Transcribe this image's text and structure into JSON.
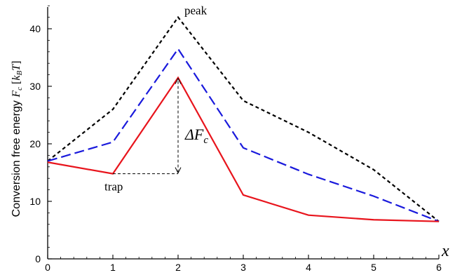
{
  "chart_data": {
    "type": "line",
    "x": [
      0,
      1,
      2,
      3,
      4,
      5,
      6
    ],
    "xlabel": "x",
    "ylabel": {
      "text": "Conversion free energy ",
      "symbol": "F",
      "symbol_sub": "c",
      "unit_open": " [",
      "unit_k": "k",
      "unit_k_sub": "B",
      "unit_T": "T",
      "unit_close": "]"
    },
    "xlim": [
      0,
      6
    ],
    "ylim": [
      0,
      45
    ],
    "xticks": [
      0,
      1,
      2,
      3,
      4,
      5,
      6
    ],
    "xtick_labels": [
      "0",
      "1",
      "2",
      "3",
      "4",
      "5",
      "6"
    ],
    "yticks": [
      0,
      10,
      20,
      30,
      40
    ],
    "ytick_labels": [
      "0",
      "10",
      "20",
      "30",
      "40"
    ],
    "grid": false,
    "series": [
      {
        "color": "#000000",
        "dash": "5,4",
        "values": [
          17.0,
          26.0,
          42.0,
          27.5,
          22.0,
          15.5,
          6.5
        ]
      },
      {
        "color": "#1a1adc",
        "dash": "14,6",
        "values": [
          17.0,
          20.3,
          36.5,
          19.3,
          14.7,
          10.9,
          6.5
        ]
      },
      {
        "color": "#e8141c",
        "dash": "",
        "values": [
          16.8,
          14.8,
          31.5,
          11.1,
          7.6,
          6.8,
          6.5
        ]
      }
    ],
    "annotations": {
      "peak": {
        "text": "peak",
        "x": 2,
        "y": 42.0
      },
      "trap": {
        "text": "trap",
        "x": 1,
        "y": 14.8
      },
      "delta": {
        "text_delta": "ΔF",
        "text_sub": "c",
        "x": 2,
        "y_low": 14.8,
        "y_high": 31.5
      }
    }
  }
}
